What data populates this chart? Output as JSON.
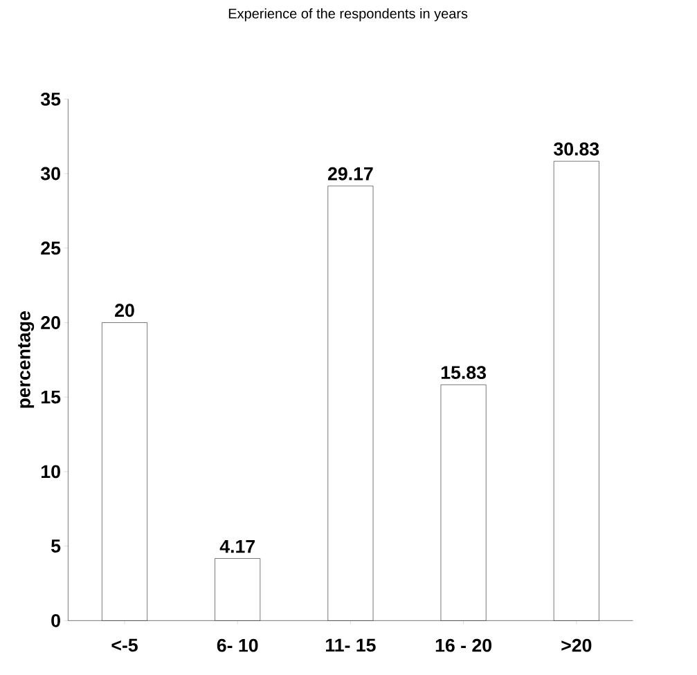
{
  "chart_data": {
    "type": "bar",
    "title": "Experience of the respondents in years",
    "ylabel": "percentage",
    "categories": [
      "<-5",
      "6- 10",
      "11- 15",
      "16 - 20",
      ">20"
    ],
    "values": [
      20,
      4.17,
      29.17,
      15.83,
      30.83
    ],
    "color": "#ffffff",
    "ylim": [
      0,
      35
    ],
    "yticks": [
      0,
      5,
      10,
      15,
      20,
      25,
      30,
      35
    ],
    "data_labels": true
  }
}
